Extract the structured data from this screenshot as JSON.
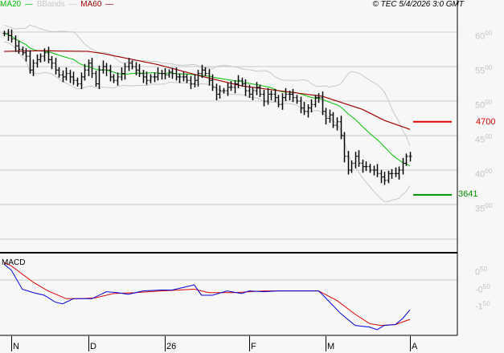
{
  "chart_data": {
    "type": "ohlc",
    "legend": {
      "ma20": "MA20",
      "bbands": "BBands",
      "ma60": "MA60",
      "position": "top-left"
    },
    "copyright": "© TEC 5/4/2026 3:0 GMT",
    "colors": {
      "ma20": "#00c000",
      "bbands": "#c8c8c8",
      "ma60": "#a00000",
      "price": "#000000",
      "macd": "#0000dd",
      "signal": "#dd0000",
      "target": "#dd0000",
      "support": "#009000"
    },
    "y_axis": {
      "ticks": [
        {
          "int": "60",
          "dec": "00",
          "v": 60
        },
        {
          "int": "55",
          "dec": "00",
          "v": 55
        },
        {
          "int": "50",
          "dec": "00",
          "v": 50
        },
        {
          "int": "45",
          "dec": "00",
          "v": 45
        },
        {
          "int": "40",
          "dec": "00",
          "v": 40
        },
        {
          "int": "35",
          "dec": "00",
          "v": 35
        }
      ],
      "range": [
        30,
        60
      ],
      "grid": true
    },
    "x_axis": {
      "labels": [
        {
          "label": "N",
          "bar": 2
        },
        {
          "label": "D",
          "bar": 23
        },
        {
          "label": "26",
          "bar": 44
        },
        {
          "label": "F",
          "bar": 67
        },
        {
          "label": "M",
          "bar": 88
        },
        {
          "label": "A",
          "bar": 111
        }
      ]
    },
    "levels": {
      "resistance": {
        "label": "4700",
        "value": 47.0
      },
      "support": {
        "label": "3641",
        "value": 36.41
      }
    },
    "closes": [
      59.8,
      59.5,
      59,
      58,
      57.5,
      57,
      56.5,
      54.5,
      55.5,
      56,
      56.5,
      57,
      56,
      55.5,
      54.5,
      53.8,
      53.5,
      54,
      53.5,
      53,
      52.5,
      53.5,
      54.5,
      55.5,
      54,
      52.5,
      54.5,
      55,
      54.5,
      53.5,
      53,
      53.5,
      54,
      55,
      55.5,
      55,
      54.5,
      54,
      53.5,
      53,
      53.5,
      53.5,
      54,
      54,
      53.8,
      54.2,
      54,
      53.5,
      53.5,
      53.5,
      53,
      52.5,
      53,
      54,
      54.5,
      54,
      53,
      52,
      51,
      51.5,
      51.5,
      52,
      52,
      52.5,
      53,
      52.5,
      51.5,
      51,
      51.5,
      52,
      51,
      50,
      51,
      51,
      50.5,
      49.5,
      50.5,
      51,
      51,
      50.5,
      50,
      49,
      48.5,
      49,
      49.5,
      50.5,
      50.5,
      48.5,
      47.5,
      48,
      46.5,
      47,
      45,
      42,
      40,
      41,
      42,
      41,
      40.5,
      40.5,
      40,
      40,
      39.5,
      39,
      38.5,
      39.5,
      39.5,
      39.5,
      40,
      41,
      42,
      42
    ],
    "ma60_points": [
      [
        0,
        57.2
      ],
      [
        10,
        57.3
      ],
      [
        23,
        57.2
      ],
      [
        27,
        56.9
      ],
      [
        42,
        55.3
      ],
      [
        54,
        53.6
      ],
      [
        65,
        52.2
      ],
      [
        87,
        50.7
      ],
      [
        98,
        48.8
      ],
      [
        104,
        47.2
      ],
      [
        111,
        45.9
      ]
    ],
    "macd": {
      "title": "MACD",
      "ticks": [
        {
          "int": "0",
          "dec": "50",
          "v": 0.5
        },
        {
          "int": "-0",
          "dec": "50",
          "v": -0.5
        },
        {
          "int": "-1",
          "dec": "50",
          "v": -1.5
        }
      ],
      "macd_points": [
        [
          0,
          1.15
        ],
        [
          2,
          0.8
        ],
        [
          5,
          -0.3
        ],
        [
          8,
          -0.5
        ],
        [
          11,
          -0.65
        ],
        [
          14,
          -1.05
        ],
        [
          16,
          -1.15
        ],
        [
          19,
          -0.85
        ],
        [
          21,
          -0.85
        ],
        [
          24,
          -0.85
        ],
        [
          28,
          -0.45
        ],
        [
          31,
          -0.5
        ],
        [
          34,
          -0.6
        ],
        [
          38,
          -0.4
        ],
        [
          43,
          -0.35
        ],
        [
          46,
          -0.35
        ],
        [
          50,
          -0.15
        ],
        [
          52,
          -0.05
        ],
        [
          54,
          -0.65
        ],
        [
          57,
          -0.65
        ],
        [
          61,
          -0.4
        ],
        [
          65,
          -0.55
        ],
        [
          67,
          -0.4
        ],
        [
          71,
          -0.45
        ],
        [
          75,
          -0.4
        ],
        [
          80,
          -0.4
        ],
        [
          86,
          -0.4
        ],
        [
          87,
          -0.6
        ],
        [
          92,
          -1.7
        ],
        [
          96,
          -2.4
        ],
        [
          100,
          -2.5
        ],
        [
          102,
          -2.65
        ],
        [
          104,
          -2.4
        ],
        [
          107,
          -2.35
        ],
        [
          109,
          -2.0
        ],
        [
          111,
          -1.5
        ]
      ],
      "signal_points": [
        [
          0,
          1.25
        ],
        [
          2,
          1.05
        ],
        [
          8,
          0.1
        ],
        [
          12,
          -0.4
        ],
        [
          17,
          -0.85
        ],
        [
          21,
          -0.85
        ],
        [
          25,
          -0.8
        ],
        [
          30,
          -0.55
        ],
        [
          36,
          -0.5
        ],
        [
          43,
          -0.4
        ],
        [
          52,
          -0.3
        ],
        [
          56,
          -0.5
        ],
        [
          63,
          -0.5
        ],
        [
          71,
          -0.4
        ],
        [
          80,
          -0.4
        ],
        [
          86,
          -0.4
        ],
        [
          91,
          -0.95
        ],
        [
          96,
          -1.75
        ],
        [
          100,
          -2.3
        ],
        [
          103,
          -2.4
        ],
        [
          107,
          -2.35
        ],
        [
          111,
          -2.05
        ]
      ]
    }
  }
}
